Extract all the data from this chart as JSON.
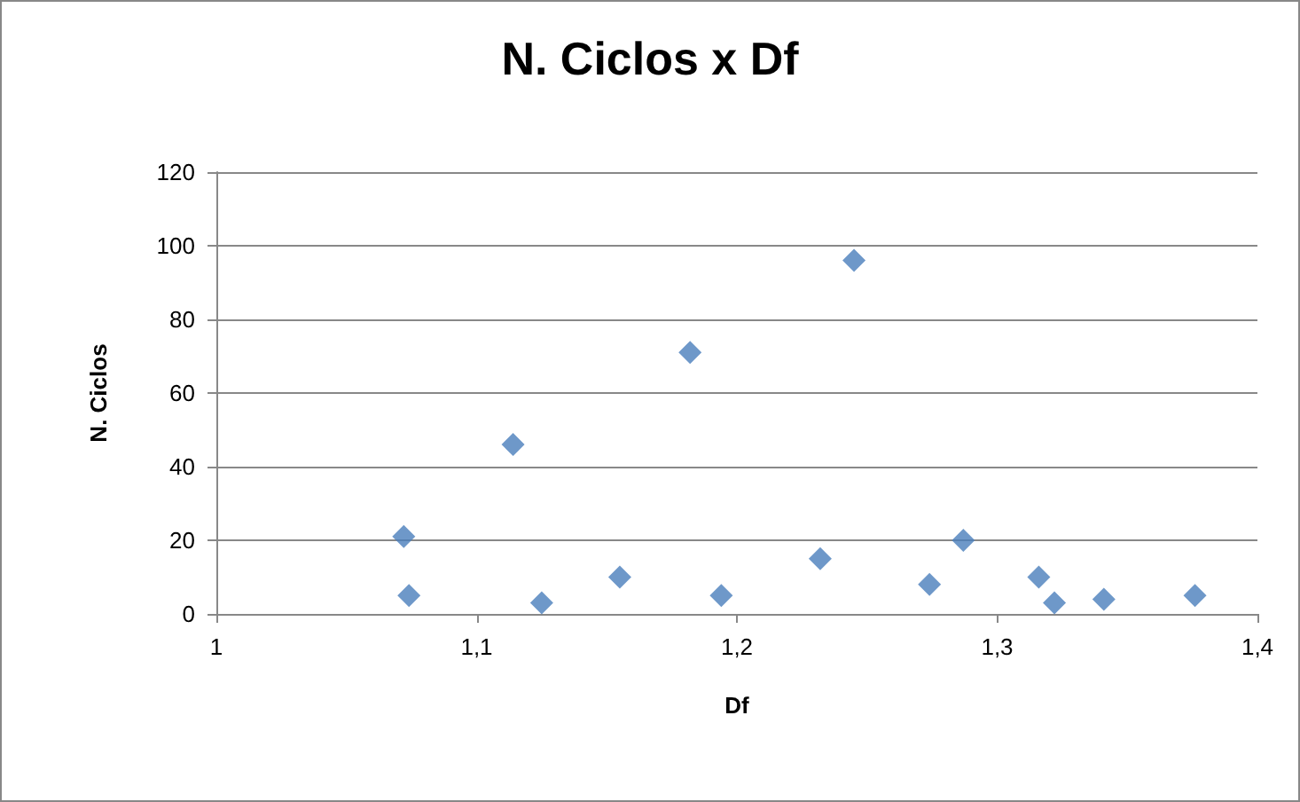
{
  "chart_data": {
    "type": "scatter",
    "title": "N. Ciclos x Df",
    "xlabel": "Df",
    "ylabel": "N. Ciclos",
    "x": [
      1.072,
      1.074,
      1.114,
      1.125,
      1.155,
      1.182,
      1.194,
      1.232,
      1.245,
      1.274,
      1.287,
      1.316,
      1.322,
      1.341,
      1.376
    ],
    "values": [
      21,
      5,
      46,
      3,
      10,
      71,
      5,
      15,
      96,
      8,
      20,
      10,
      3,
      4,
      5
    ],
    "color": "#4a7ebb",
    "marker": "diamond",
    "grid": "y",
    "xlim": [
      1,
      1.4
    ],
    "xticks": [
      1,
      {
        "value": 1.1,
        "label": "1,1"
      },
      {
        "value": 1.2,
        "label": "1,2"
      },
      {
        "value": 1.3,
        "label": "1,3"
      },
      {
        "value": 1.4,
        "label": "1,4"
      }
    ],
    "ylim": [
      0,
      120
    ],
    "yticks": [
      0,
      20,
      40,
      60,
      80,
      100,
      120
    ]
  }
}
